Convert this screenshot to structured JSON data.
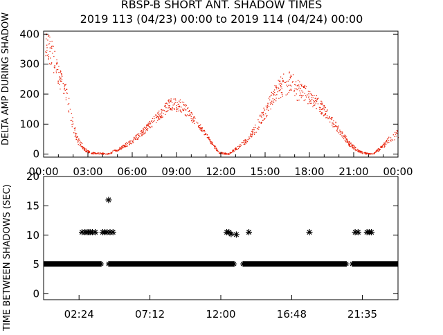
{
  "title_line1": "RBSP-B SHORT ANT. SHADOW TIMES",
  "title_line2": "2019 113 (04/23) 00:00 to 2019 114 (04/24) 00:00",
  "colors": {
    "series": "#e8240c",
    "axes": "#000000"
  },
  "chart_data": [
    {
      "type": "scatter",
      "ylabel": "DELTA AMP DURING SHADOW",
      "xlim": [
        0,
        24
      ],
      "ylim": [
        -10,
        410
      ],
      "x_tick_labels": [
        "00:00",
        "03:00",
        "06:00",
        "09:00",
        "12:00",
        "15:00",
        "18:00",
        "21:00",
        "00:00"
      ],
      "x_ticks_hours": [
        0,
        3,
        6,
        9,
        12,
        15,
        18,
        21,
        24
      ],
      "y_ticks": [
        0,
        100,
        200,
        300,
        400
      ],
      "series": [
        {
          "marker": "dot",
          "envelope_hours": [
            0.1,
            0.5,
            1.0,
            1.5,
            1.9,
            2.3,
            2.8,
            3.2,
            4.3,
            5.0,
            6.0,
            7.0,
            8.0,
            8.5,
            9.0,
            9.5,
            10.0,
            10.6,
            11.2,
            11.7,
            11.9,
            12.5,
            13.2,
            13.9,
            14.5,
            15.0,
            15.6,
            16.2,
            16.7,
            17.1,
            17.6,
            18.0,
            18.5,
            19.0,
            19.5,
            20.0,
            20.7,
            21.2,
            21.6,
            22.3,
            23.0,
            23.5,
            24.0
          ],
          "envelope_center": [
            370,
            340,
            260,
            210,
            110,
            45,
            15,
            5,
            2,
            15,
            45,
            90,
            140,
            170,
            165,
            155,
            125,
            90,
            50,
            15,
            5,
            2,
            25,
            55,
            100,
            145,
            200,
            235,
            245,
            215,
            205,
            190,
            170,
            145,
            110,
            80,
            35,
            15,
            5,
            2,
            30,
            55,
            70
          ],
          "envelope_spread": [
            40,
            50,
            35,
            30,
            25,
            12,
            6,
            3,
            2,
            5,
            8,
            12,
            18,
            20,
            25,
            20,
            15,
            10,
            8,
            5,
            3,
            2,
            6,
            10,
            18,
            25,
            30,
            40,
            40,
            35,
            30,
            25,
            25,
            20,
            15,
            12,
            8,
            5,
            3,
            2,
            8,
            12,
            15
          ]
        }
      ]
    },
    {
      "type": "scatter",
      "ylabel": "TIME BETWEEN SHADOWS (SEC)",
      "xlim": [
        0,
        24
      ],
      "ylim": [
        -1,
        20
      ],
      "x_tick_labels": [
        "02:24",
        "07:12",
        "12:00",
        "16:48",
        "21:35"
      ],
      "x_ticks_hours": [
        2.4,
        7.2,
        12.0,
        16.8,
        21.583
      ],
      "y_ticks": [
        0,
        5,
        10,
        15,
        20
      ],
      "baseline_value": 5.1,
      "gap_windows_hours": [
        [
          3.9,
          4.4
        ],
        [
          12.9,
          13.5
        ],
        [
          20.5,
          20.9
        ]
      ],
      "series": [
        {
          "marker": "asterisk",
          "x": [
            2.6,
            2.8,
            2.95,
            3.05,
            3.15,
            3.3,
            3.5,
            4.0,
            4.15,
            4.3,
            4.5,
            4.7,
            4.4,
            12.4,
            12.55,
            12.7,
            13.05,
            13.9,
            18.0,
            21.1,
            21.3,
            21.9,
            22.05,
            22.2
          ],
          "y": [
            10.5,
            10.5,
            10.5,
            10.5,
            10.5,
            10.5,
            10.5,
            10.5,
            10.5,
            10.5,
            10.5,
            10.5,
            16.0,
            10.5,
            10.5,
            10.2,
            10.1,
            10.5,
            10.5,
            10.5,
            10.5,
            10.5,
            10.5,
            10.5
          ]
        }
      ]
    }
  ]
}
